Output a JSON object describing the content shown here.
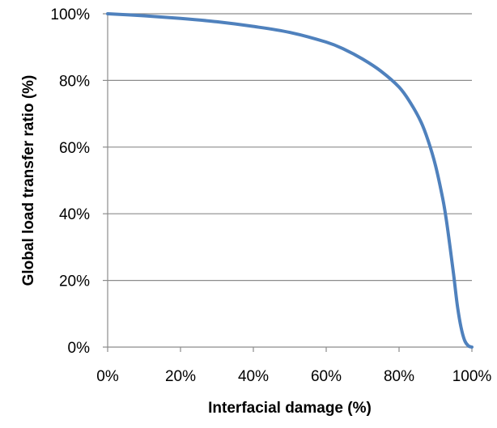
{
  "chart_data": {
    "type": "line",
    "title": "",
    "xlabel": "Interfacial damage (%)",
    "ylabel": "Global load transfer ratio (%)",
    "xlim": [
      0,
      100
    ],
    "ylim": [
      0,
      100
    ],
    "x_ticks": [
      0,
      20,
      40,
      60,
      80,
      100
    ],
    "y_ticks": [
      0,
      20,
      40,
      60,
      80,
      100
    ],
    "x_tick_labels": [
      "0%",
      "20%",
      "40%",
      "60%",
      "80%",
      "100%"
    ],
    "y_tick_labels": [
      "0%",
      "20%",
      "40%",
      "60%",
      "80%",
      "100%"
    ],
    "grid": "horizontal",
    "legend": "none",
    "colors": {
      "series": "#4F81BD",
      "grid": "#8C8C8C",
      "axis": "#8C8C8C"
    },
    "series": [
      {
        "x": [
          0,
          10,
          20,
          30,
          40,
          50,
          60,
          65,
          70,
          75,
          80,
          83,
          86,
          88,
          90,
          92,
          93,
          94,
          95,
          96,
          97,
          98,
          99,
          100
        ],
        "y": [
          100,
          99.4,
          98.6,
          97.6,
          96.2,
          94.4,
          91.5,
          89.3,
          86.4,
          82.8,
          78,
          73.5,
          67.6,
          61.9,
          54.5,
          44.5,
          38,
          30,
          21.6,
          12.5,
          6,
          2,
          0.4,
          0
        ]
      }
    ]
  }
}
